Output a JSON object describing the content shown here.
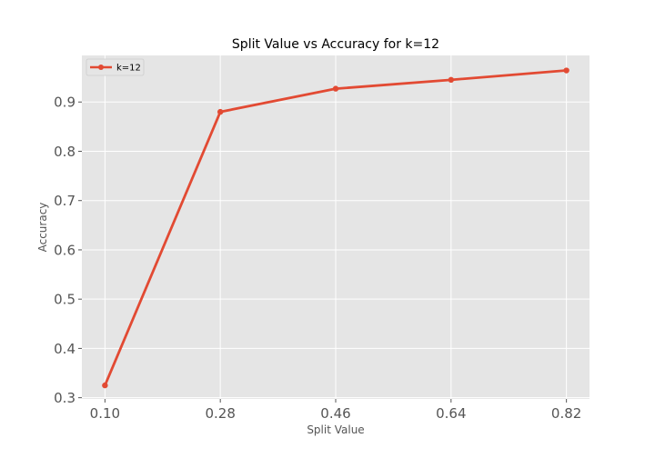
{
  "chart_data": {
    "type": "line",
    "title": "Split Value vs Accuracy for k=12",
    "xlabel": "Split Value",
    "ylabel": "Accuracy",
    "x": [
      0.1,
      0.28,
      0.46,
      0.64,
      0.82
    ],
    "x_tick_labels": [
      "0.10",
      "0.28",
      "0.46",
      "0.64",
      "0.82"
    ],
    "y_ticks": [
      0.3,
      0.4,
      0.5,
      0.6,
      0.7,
      0.8,
      0.9
    ],
    "y_tick_labels": [
      "0.3",
      "0.4",
      "0.5",
      "0.6",
      "0.7",
      "0.8",
      "0.9"
    ],
    "xlim": [
      0.064,
      0.856
    ],
    "ylim": [
      0.2975,
      0.9945
    ],
    "grid": true,
    "legend_position": "upper-left",
    "series": [
      {
        "name": "k=12",
        "values": [
          0.325,
          0.88,
          0.927,
          0.945,
          0.964
        ],
        "color": "#E24A33"
      }
    ],
    "colors": {
      "plot_background": "#E5E5E5",
      "grid": "#FFFFFF",
      "tick_text": "#555555"
    }
  }
}
